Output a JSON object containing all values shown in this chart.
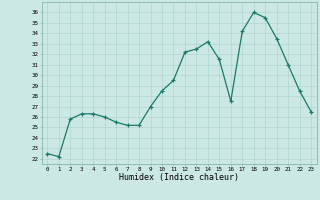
{
  "x": [
    0,
    1,
    2,
    3,
    4,
    5,
    6,
    7,
    8,
    9,
    10,
    11,
    12,
    13,
    14,
    15,
    16,
    17,
    18,
    19,
    20,
    21,
    22,
    23
  ],
  "y": [
    22.5,
    22.2,
    25.8,
    26.3,
    26.3,
    26.0,
    25.5,
    25.2,
    25.2,
    27.0,
    28.5,
    29.5,
    32.2,
    32.5,
    33.2,
    31.5,
    27.5,
    34.2,
    36.0,
    35.5,
    33.5,
    31.0,
    28.5,
    26.5
  ],
  "x_ticks": [
    0,
    1,
    2,
    3,
    4,
    5,
    6,
    7,
    8,
    9,
    10,
    11,
    12,
    13,
    14,
    15,
    16,
    17,
    18,
    19,
    20,
    21,
    22,
    23
  ],
  "y_ticks": [
    22,
    23,
    24,
    25,
    26,
    27,
    28,
    29,
    30,
    31,
    32,
    33,
    34,
    35,
    36
  ],
  "ylim": [
    21.5,
    37.0
  ],
  "xlim": [
    -0.5,
    23.5
  ],
  "xlabel": "Humidex (Indice chaleur)",
  "line_color": "#1a7a6a",
  "marker": "+",
  "bg_color": "#cce8e4",
  "grid_color": "#aacfca",
  "spine_color": "#7aada8"
}
